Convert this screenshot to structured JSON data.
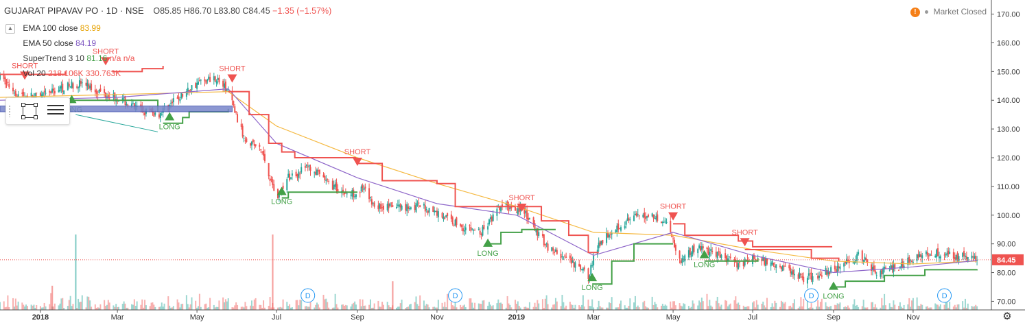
{
  "header": {
    "title": "GUJARAT PIPAVAV PO · 1D · NSE",
    "open": "O85.85",
    "high": "H86.70",
    "low": "L83.80",
    "close": "C84.45",
    "change": "−1.35 (−1.57%)"
  },
  "legend": {
    "ema100_label": "EMA 100 close",
    "ema100_value": "83.99",
    "ema50_label": "EMA 50 close",
    "ema50_value": "84.19",
    "supertrend_label": "SuperTrend 3 10",
    "supertrend_value": "81.16",
    "supertrend_na": "n/a n/a",
    "vol_label": "Vol 20",
    "vol_value": "218.106K",
    "vol_ma": "330.763K"
  },
  "market_status": "Market Closed",
  "colors": {
    "up": "#26a69a",
    "down": "#ef5350",
    "ema100": "#f5b942",
    "ema50": "#8e66c9",
    "st_up": "#43a047",
    "st_down": "#ef5350",
    "ema100_legend": "#e6a100",
    "ema50_legend": "#7e57c2",
    "st_legend": "#43a047",
    "vol_legend": "#ef5350",
    "last_price": "#ef5350",
    "event_badge": "#2196f3",
    "box_fill": "#7986cb"
  },
  "icons": {
    "market_warning": "exclamation-icon",
    "legend_toggle": "chevron-up-icon",
    "rectangle_tool": "rectangle-icon",
    "menu": "lines-icon",
    "settings": "gear-icon"
  },
  "chart_data": {
    "type": "candlestick",
    "title": "GUJARAT PIPAVAV PO · 1D · NSE",
    "xlabel": "",
    "ylabel": "",
    "ylim": [
      67,
      173
    ],
    "grid": false,
    "y_ticks": [
      "70.00",
      "80.00",
      "90.00",
      "100.00",
      "110.00",
      "120.00",
      "130.00",
      "140.00",
      "150.00",
      "160.00",
      "170.00"
    ],
    "x_ticks": [
      {
        "label": "2018",
        "date": "2018-01-01"
      },
      {
        "label": "Mar",
        "date": "2018-03-01"
      },
      {
        "label": "May",
        "date": "2018-05-01"
      },
      {
        "label": "Jul",
        "date": "2018-07-01"
      },
      {
        "label": "Sep",
        "date": "2018-09-01"
      },
      {
        "label": "Nov",
        "date": "2018-11-01"
      },
      {
        "label": "2019",
        "date": "2019-01-01"
      },
      {
        "label": "Mar",
        "date": "2019-03-01"
      },
      {
        "label": "May",
        "date": "2019-05-01"
      },
      {
        "label": "Jul",
        "date": "2019-07-01"
      },
      {
        "label": "Sep",
        "date": "2019-09-01"
      },
      {
        "label": "Nov",
        "date": "2019-11-01"
      }
    ],
    "date_range": [
      "2017-12-01",
      "2019-12-31"
    ],
    "price_path": [
      [
        "2017-12-01",
        148
      ],
      [
        "2017-12-15",
        142
      ],
      [
        "2018-01-01",
        141
      ],
      [
        "2018-01-15",
        144
      ],
      [
        "2018-02-01",
        146
      ],
      [
        "2018-02-15",
        143
      ],
      [
        "2018-03-01",
        141
      ],
      [
        "2018-03-15",
        137
      ],
      [
        "2018-04-01",
        135
      ],
      [
        "2018-04-15",
        140
      ],
      [
        "2018-05-01",
        146
      ],
      [
        "2018-05-15",
        148
      ],
      [
        "2018-05-25",
        143
      ],
      [
        "2018-06-05",
        128
      ],
      [
        "2018-06-20",
        122
      ],
      [
        "2018-07-01",
        106
      ],
      [
        "2018-07-10",
        113
      ],
      [
        "2018-07-25",
        117
      ],
      [
        "2018-08-10",
        111
      ],
      [
        "2018-08-25",
        107
      ],
      [
        "2018-09-05",
        109
      ],
      [
        "2018-09-15",
        103
      ],
      [
        "2018-10-01",
        103
      ],
      [
        "2018-10-20",
        103
      ],
      [
        "2018-11-05",
        100
      ],
      [
        "2018-11-20",
        96
      ],
      [
        "2018-12-05",
        94
      ],
      [
        "2018-12-20",
        103
      ],
      [
        "2019-01-05",
        102
      ],
      [
        "2019-01-15",
        95
      ],
      [
        "2019-01-25",
        89
      ],
      [
        "2019-02-10",
        84
      ],
      [
        "2019-02-25",
        79
      ],
      [
        "2019-03-05",
        90
      ],
      [
        "2019-03-15",
        95
      ],
      [
        "2019-04-01",
        99
      ],
      [
        "2019-04-15",
        100
      ],
      [
        "2019-04-28",
        97
      ],
      [
        "2019-05-05",
        84
      ],
      [
        "2019-05-20",
        89
      ],
      [
        "2019-06-05",
        86
      ],
      [
        "2019-06-20",
        83
      ],
      [
        "2019-07-01",
        85
      ],
      [
        "2019-07-20",
        83
      ],
      [
        "2019-08-10",
        78
      ],
      [
        "2019-08-25",
        80
      ],
      [
        "2019-09-05",
        82
      ],
      [
        "2019-09-20",
        86
      ],
      [
        "2019-10-05",
        80
      ],
      [
        "2019-10-20",
        82
      ],
      [
        "2019-11-05",
        86
      ],
      [
        "2019-11-20",
        87
      ],
      [
        "2019-12-05",
        86
      ],
      [
        "2019-12-20",
        84.45
      ]
    ],
    "ema100_path": [
      [
        "2017-12-01",
        141
      ],
      [
        "2018-03-01",
        142
      ],
      [
        "2018-05-25",
        143
      ],
      [
        "2018-07-01",
        131
      ],
      [
        "2018-09-01",
        120
      ],
      [
        "2018-11-01",
        111
      ],
      [
        "2019-01-01",
        103
      ],
      [
        "2019-03-01",
        94
      ],
      [
        "2019-05-01",
        93
      ],
      [
        "2019-07-01",
        88
      ],
      [
        "2019-09-01",
        84
      ],
      [
        "2019-11-01",
        83
      ],
      [
        "2019-12-20",
        84
      ]
    ],
    "ema50_path": [
      [
        "2017-12-01",
        140
      ],
      [
        "2018-03-01",
        141
      ],
      [
        "2018-05-25",
        144
      ],
      [
        "2018-07-01",
        125
      ],
      [
        "2018-09-01",
        113
      ],
      [
        "2018-11-01",
        104
      ],
      [
        "2019-01-01",
        100
      ],
      [
        "2019-03-01",
        86
      ],
      [
        "2019-05-01",
        94
      ],
      [
        "2019-07-01",
        86
      ],
      [
        "2019-09-01",
        80
      ],
      [
        "2019-11-01",
        82
      ],
      [
        "2019-12-20",
        84.19
      ]
    ],
    "supertrend": [
      {
        "trend": "down",
        "path": [
          [
            "2017-12-01",
            149
          ],
          [
            "2018-01-10",
            149
          ],
          [
            "2018-01-20",
            150
          ]
        ]
      },
      {
        "trend": "up",
        "path": [
          [
            "2018-01-25",
            140
          ],
          [
            "2018-03-20",
            140
          ],
          [
            "2018-04-01",
            136
          ]
        ]
      },
      {
        "trend": "down",
        "path": [
          [
            "2018-02-25",
            150
          ],
          [
            "2018-03-20",
            151
          ],
          [
            "2018-04-05",
            152
          ]
        ]
      },
      {
        "trend": "up",
        "path": [
          [
            "2018-04-05",
            132
          ],
          [
            "2018-04-20",
            134
          ],
          [
            "2018-04-25",
            136
          ],
          [
            "2018-05-20",
            136
          ],
          [
            "2018-05-25",
            137
          ]
        ]
      },
      {
        "trend": "down",
        "path": [
          [
            "2018-05-25",
            143
          ],
          [
            "2018-06-10",
            135
          ],
          [
            "2018-06-25",
            125
          ],
          [
            "2018-07-05",
            122
          ],
          [
            "2018-07-15",
            120
          ],
          [
            "2018-08-31",
            120
          ]
        ]
      },
      {
        "trend": "up",
        "path": [
          [
            "2018-07-05",
            106
          ],
          [
            "2018-07-10",
            108
          ],
          [
            "2018-09-01",
            108
          ]
        ]
      },
      {
        "trend": "down",
        "path": [
          [
            "2018-09-01",
            118
          ],
          [
            "2018-09-20",
            112
          ],
          [
            "2018-11-01",
            111
          ],
          [
            "2018-11-15",
            103
          ],
          [
            "2018-12-15",
            103
          ],
          [
            "2018-12-31",
            103
          ]
        ]
      },
      {
        "trend": "up",
        "path": [
          [
            "2018-12-10",
            90
          ],
          [
            "2018-12-20",
            94
          ],
          [
            "2019-01-05",
            95
          ],
          [
            "2019-01-31",
            95
          ]
        ]
      },
      {
        "trend": "down",
        "path": [
          [
            "2019-01-01",
            103
          ],
          [
            "2019-01-20",
            98
          ],
          [
            "2019-02-10",
            93
          ],
          [
            "2019-02-25",
            87
          ],
          [
            "2019-03-05",
            87
          ]
        ]
      },
      {
        "trend": "up",
        "path": [
          [
            "2019-02-28",
            76
          ],
          [
            "2019-03-15",
            84
          ],
          [
            "2019-04-01",
            90
          ],
          [
            "2019-05-01",
            90
          ]
        ]
      },
      {
        "trend": "down",
        "path": [
          [
            "2019-05-01",
            97
          ],
          [
            "2019-05-10",
            93
          ],
          [
            "2019-06-20",
            91
          ],
          [
            "2019-07-01",
            89
          ],
          [
            "2019-08-31",
            89
          ]
        ]
      },
      {
        "trend": "up",
        "path": [
          [
            "2019-05-25",
            84
          ],
          [
            "2019-06-25",
            84
          ],
          [
            "2019-07-05",
            85
          ]
        ]
      },
      {
        "trend": "down",
        "path": [
          [
            "2019-06-25",
            88
          ],
          [
            "2019-08-15",
            85
          ],
          [
            "2019-09-05",
            84
          ]
        ]
      },
      {
        "trend": "up",
        "path": [
          [
            "2019-09-01",
            75
          ],
          [
            "2019-09-10",
            77
          ],
          [
            "2019-10-10",
            79
          ],
          [
            "2019-11-10",
            81
          ],
          [
            "2019-12-20",
            81.16
          ]
        ]
      }
    ],
    "signals": [
      {
        "type": "SHORT",
        "date": "2017-12-20",
        "price": 150
      },
      {
        "type": "LONG",
        "date": "2018-01-25",
        "price": 139
      },
      {
        "type": "SHORT",
        "date": "2018-02-20",
        "price": 155
      },
      {
        "type": "LONG",
        "date": "2018-04-10",
        "price": 133
      },
      {
        "type": "SHORT",
        "date": "2018-05-28",
        "price": 149
      },
      {
        "type": "LONG",
        "date": "2018-07-05",
        "price": 107
      },
      {
        "type": "SHORT",
        "date": "2018-09-01",
        "price": 120
      },
      {
        "type": "LONG",
        "date": "2018-12-10",
        "price": 89
      },
      {
        "type": "SHORT",
        "date": "2019-01-05",
        "price": 104
      },
      {
        "type": "LONG",
        "date": "2019-02-28",
        "price": 77
      },
      {
        "type": "SHORT",
        "date": "2019-05-01",
        "price": 101
      },
      {
        "type": "LONG",
        "date": "2019-05-25",
        "price": 85
      },
      {
        "type": "SHORT",
        "date": "2019-06-25",
        "price": 92
      },
      {
        "type": "LONG",
        "date": "2019-09-01",
        "price": 74
      }
    ],
    "volume_spikes": [
      {
        "date": "2018-01-28",
        "value": 100
      },
      {
        "date": "2018-06-28",
        "value": 100
      },
      {
        "date": "2018-01-10",
        "value": 32
      },
      {
        "date": "2018-09-28",
        "value": 38
      }
    ],
    "event_markers": [
      {
        "label": "D",
        "date": "2018-07-25"
      },
      {
        "label": "D",
        "date": "2018-11-15"
      },
      {
        "label": "D",
        "date": "2019-08-15"
      },
      {
        "label": "D",
        "date": "2019-11-25"
      }
    ],
    "box": {
      "start": "2017-12-01",
      "end": "2018-05-28",
      "high": 138,
      "low": 136
    },
    "trend_line": [
      [
        "2018-01-28",
        135
      ],
      [
        "2018-04-01",
        129
      ]
    ],
    "last_price": 84.45,
    "last_price_label": "84.45"
  }
}
